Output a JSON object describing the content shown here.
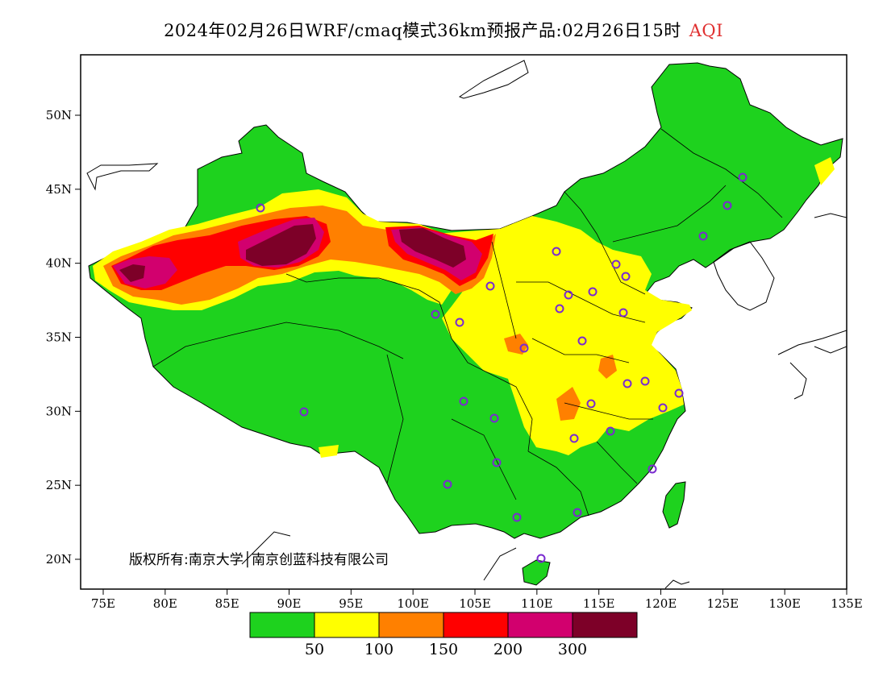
{
  "title": {
    "main": "2024年02月26日WRF/cmaq模式36km预报产品:02月26日15时",
    "variable": "AQI",
    "variable_color": "#e03030"
  },
  "copyright": "版权所有:南京大学│南京创蓝科技有限公司",
  "axes": {
    "lon_labels": [
      "75E",
      "80E",
      "85E",
      "90E",
      "95E",
      "100E",
      "105E",
      "110E",
      "115E",
      "120E",
      "125E",
      "130E",
      "135E"
    ],
    "lat_labels": [
      "50N",
      "45N",
      "40N",
      "35N",
      "30N",
      "25N",
      "20N"
    ]
  },
  "legend": {
    "colors": [
      "#1ed21e",
      "#ffff00",
      "#ff8000",
      "#ff0000",
      "#d2006e",
      "#7d0028"
    ],
    "labels": [
      "50",
      "100",
      "150",
      "200",
      "300"
    ]
  }
}
